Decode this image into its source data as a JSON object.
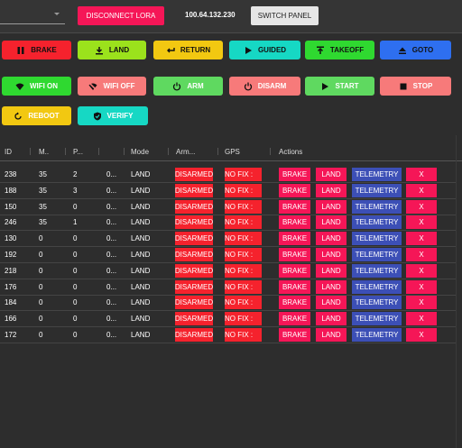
{
  "topbar": {
    "disconnect_label": "DISCONNECT LORA",
    "ip_address": "100.64.132.230",
    "switch_label": "SWITCH PANEL"
  },
  "controls": {
    "brake": "BRAKE",
    "land": "LAND",
    "return": "RETURN",
    "guided": "GUIDED",
    "takeoff": "TAKEOFF",
    "goto": "GOTO",
    "wifi_on": "WIFI ON",
    "wifi_off": "WIFI OFF",
    "arm": "ARM",
    "disarm": "DISARM",
    "start": "START",
    "stop": "STOP",
    "reboot": "REBOOT",
    "verify": "VERIFY"
  },
  "table": {
    "headers": [
      "ID",
      "M..",
      "P...",
      "",
      "Mode",
      "Arm...",
      "GPS",
      "Actions"
    ],
    "action_labels": {
      "brake": "BRAKE",
      "land": "LAND",
      "telemetry": "TELEMETRY",
      "close": "X"
    },
    "rows": [
      {
        "id": "238",
        "m": "35",
        "p": "2",
        "x": "0...",
        "mode": "LAND",
        "arm": "DISARMED",
        "gps": "NO FIX :"
      },
      {
        "id": "188",
        "m": "35",
        "p": "3",
        "x": "0...",
        "mode": "LAND",
        "arm": "DISARMED",
        "gps": "NO FIX :"
      },
      {
        "id": "150",
        "m": "35",
        "p": "0",
        "x": "0...",
        "mode": "LAND",
        "arm": "DISARMED",
        "gps": "NO FIX :"
      },
      {
        "id": "246",
        "m": "35",
        "p": "1",
        "x": "0...",
        "mode": "LAND",
        "arm": "DISARMED",
        "gps": "NO FIX :"
      },
      {
        "id": "130",
        "m": "0",
        "p": "0",
        "x": "0...",
        "mode": "LAND",
        "arm": "DISARMED",
        "gps": "NO FIX :"
      },
      {
        "id": "192",
        "m": "0",
        "p": "0",
        "x": "0...",
        "mode": "LAND",
        "arm": "DISARMED",
        "gps": "NO FIX :"
      },
      {
        "id": "218",
        "m": "0",
        "p": "0",
        "x": "0...",
        "mode": "LAND",
        "arm": "DISARMED",
        "gps": "NO FIX :"
      },
      {
        "id": "176",
        "m": "0",
        "p": "0",
        "x": "0...",
        "mode": "LAND",
        "arm": "DISARMED",
        "gps": "NO FIX :"
      },
      {
        "id": "184",
        "m": "0",
        "p": "0",
        "x": "0...",
        "mode": "LAND",
        "arm": "DISARMED",
        "gps": "NO FIX :"
      },
      {
        "id": "166",
        "m": "0",
        "p": "0",
        "x": "0...",
        "mode": "LAND",
        "arm": "DISARMED",
        "gps": "NO FIX :"
      },
      {
        "id": "172",
        "m": "0",
        "p": "0",
        "x": "0...",
        "mode": "LAND",
        "arm": "DISARMED",
        "gps": "NO FIX :"
      }
    ]
  },
  "colors": {
    "pink": "#f51657",
    "red": "#f5222d",
    "yellow": "#f2c811",
    "lime": "#9be21c",
    "cyan": "#16d8c4",
    "green": "#2fd930",
    "blue": "#2e6ff0",
    "light_green": "#5fd960",
    "salmon": "#f77a7a",
    "navy": "#3c4fb6"
  }
}
